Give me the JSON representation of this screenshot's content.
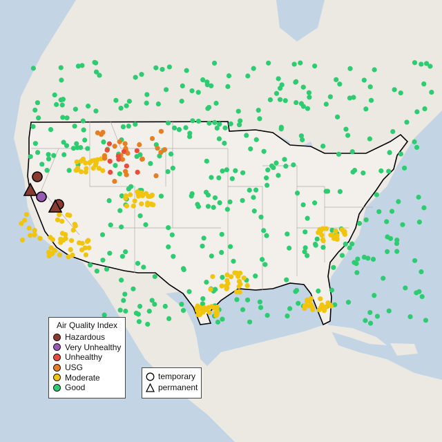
{
  "colors": {
    "land": "#f2efea",
    "water": "#c2d4e4",
    "Hazardous": "#8b3a2f",
    "Very Unhealthy": "#9b59b6",
    "Unhealthy": "#e74c3c",
    "USG": "#e67e22",
    "Moderate": "#f1c40f",
    "Good": "#2ecc71"
  },
  "legend": {
    "title": "Air Quality Index",
    "levels": [
      "Hazardous",
      "Very Unhealthy",
      "Unhealthy",
      "USG",
      "Moderate",
      "Good"
    ],
    "site_types": [
      "temporary",
      "permanent"
    ]
  }
}
